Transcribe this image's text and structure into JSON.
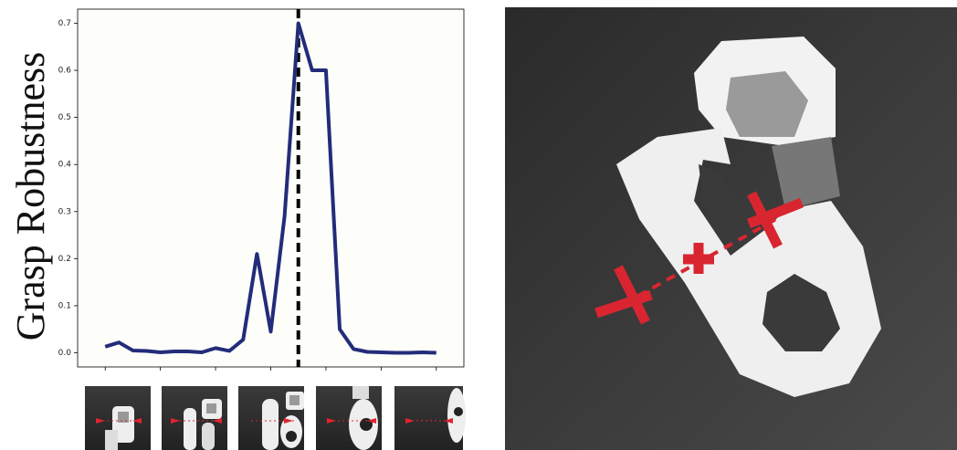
{
  "chart_data": {
    "type": "line",
    "y_label": "Grasp Robustness",
    "x": [
      0,
      1,
      2,
      3,
      4,
      5,
      6,
      7,
      8,
      9,
      10,
      11,
      12,
      13,
      14,
      15,
      16,
      17,
      18,
      19,
      20,
      21,
      22,
      23,
      24
    ],
    "values": [
      0.013,
      0.022,
      0.005,
      0.004,
      0.001,
      0.003,
      0.003,
      0.001,
      0.01,
      0.004,
      0.028,
      0.21,
      0.045,
      0.29,
      0.7,
      0.6,
      0.6,
      0.05,
      0.008,
      0.002,
      0.001,
      0.0,
      0.0,
      0.001,
      0.0
    ],
    "color": "#232c7a",
    "xlim": [
      -2,
      26
    ],
    "xticks": [
      0,
      4,
      8,
      12,
      16,
      20,
      24
    ],
    "ylim": [
      -0.03,
      0.73
    ],
    "yticks": [
      {
        "value": 0,
        "label": "0.0"
      },
      0.1,
      0.2,
      0.3,
      0.4,
      0.5,
      0.6,
      0.7
    ],
    "vline": 14
  }
}
